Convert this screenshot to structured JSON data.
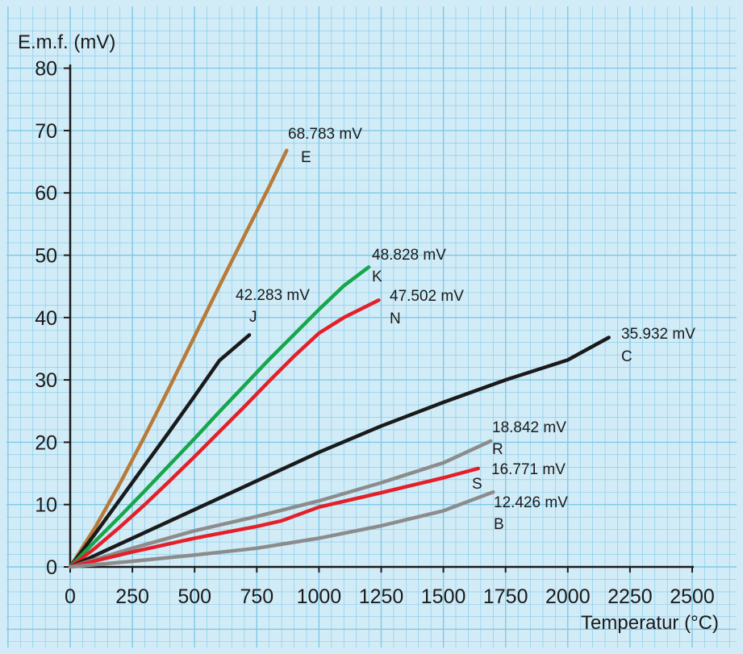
{
  "chart_data": {
    "type": "line",
    "title": "",
    "xlabel": "Temperatur (°C)",
    "ylabel": "E.m.f. (mV)",
    "xlim": [
      0,
      2500
    ],
    "ylim": [
      0,
      80
    ],
    "x_ticks": [
      0,
      250,
      500,
      750,
      1000,
      1250,
      1500,
      1750,
      2000,
      2250,
      2500
    ],
    "y_ticks": [
      0,
      10,
      20,
      30,
      40,
      50,
      60,
      70,
      80
    ],
    "grid": true,
    "background_color": "#d2ecf7",
    "grid_color": "#7fc8e6",
    "series": [
      {
        "name": "E",
        "value_label": "68.783 mV",
        "color": "#b87a38",
        "points": [
          [
            0,
            0
          ],
          [
            100,
            6.3
          ],
          [
            200,
            13.4
          ],
          [
            300,
            21.0
          ],
          [
            400,
            28.9
          ],
          [
            500,
            37.0
          ],
          [
            600,
            45.1
          ],
          [
            700,
            53.1
          ],
          [
            800,
            61.0
          ],
          [
            870,
            66.8
          ]
        ]
      },
      {
        "name": "J",
        "value_label": "42.283 mV",
        "color": "#1a1a1a",
        "points": [
          [
            0,
            0
          ],
          [
            100,
            5.3
          ],
          [
            200,
            10.8
          ],
          [
            300,
            16.3
          ],
          [
            400,
            21.8
          ],
          [
            500,
            27.4
          ],
          [
            600,
            33.1
          ],
          [
            720,
            37.2
          ]
        ]
      },
      {
        "name": "K",
        "value_label": "48.828 mV",
        "color": "#17a64a",
        "points": [
          [
            0,
            0
          ],
          [
            100,
            4.1
          ],
          [
            200,
            8.1
          ],
          [
            300,
            12.2
          ],
          [
            400,
            16.4
          ],
          [
            500,
            20.6
          ],
          [
            600,
            24.9
          ],
          [
            700,
            29.1
          ],
          [
            800,
            33.3
          ],
          [
            900,
            37.3
          ],
          [
            1000,
            41.3
          ],
          [
            1100,
            45.1
          ],
          [
            1200,
            48.1
          ]
        ]
      },
      {
        "name": "N",
        "value_label": "47.502 mV",
        "color": "#e3202a",
        "points": [
          [
            0,
            0
          ],
          [
            100,
            3.0
          ],
          [
            200,
            6.4
          ],
          [
            300,
            10.0
          ],
          [
            400,
            13.8
          ],
          [
            500,
            17.7
          ],
          [
            600,
            21.7
          ],
          [
            700,
            25.7
          ],
          [
            800,
            29.8
          ],
          [
            900,
            33.8
          ],
          [
            1000,
            37.5
          ],
          [
            1100,
            40.0
          ],
          [
            1240,
            42.8
          ]
        ]
      },
      {
        "name": "C",
        "value_label": "35.932 mV",
        "color": "#1a1a1a",
        "points": [
          [
            0,
            0
          ],
          [
            250,
            4.6
          ],
          [
            500,
            9.2
          ],
          [
            750,
            13.8
          ],
          [
            1000,
            18.4
          ],
          [
            1250,
            22.6
          ],
          [
            1500,
            26.4
          ],
          [
            1750,
            30.0
          ],
          [
            2000,
            33.2
          ],
          [
            2165,
            36.8
          ]
        ]
      },
      {
        "name": "R",
        "value_label": "18.842 mV",
        "color": "#8c8c8c",
        "points": [
          [
            0,
            0
          ],
          [
            250,
            3.0
          ],
          [
            500,
            5.8
          ],
          [
            750,
            8.1
          ],
          [
            1000,
            10.6
          ],
          [
            1250,
            13.5
          ],
          [
            1500,
            16.7
          ],
          [
            1690,
            20.2
          ]
        ]
      },
      {
        "name": "S",
        "value_label": "16.771 mV",
        "color": "#e3202a",
        "points": [
          [
            0,
            0
          ],
          [
            250,
            2.4
          ],
          [
            500,
            4.6
          ],
          [
            750,
            6.5
          ],
          [
            850,
            7.4
          ],
          [
            1000,
            9.6
          ],
          [
            1250,
            11.9
          ],
          [
            1500,
            14.3
          ],
          [
            1640,
            15.8
          ]
        ]
      },
      {
        "name": "B",
        "value_label": "12.426 mV",
        "color": "#8c8c8c",
        "points": [
          [
            0,
            0
          ],
          [
            250,
            0.9
          ],
          [
            500,
            1.9
          ],
          [
            750,
            3.0
          ],
          [
            1000,
            4.6
          ],
          [
            1250,
            6.6
          ],
          [
            1500,
            9.0
          ],
          [
            1700,
            12.0
          ]
        ]
      }
    ]
  }
}
